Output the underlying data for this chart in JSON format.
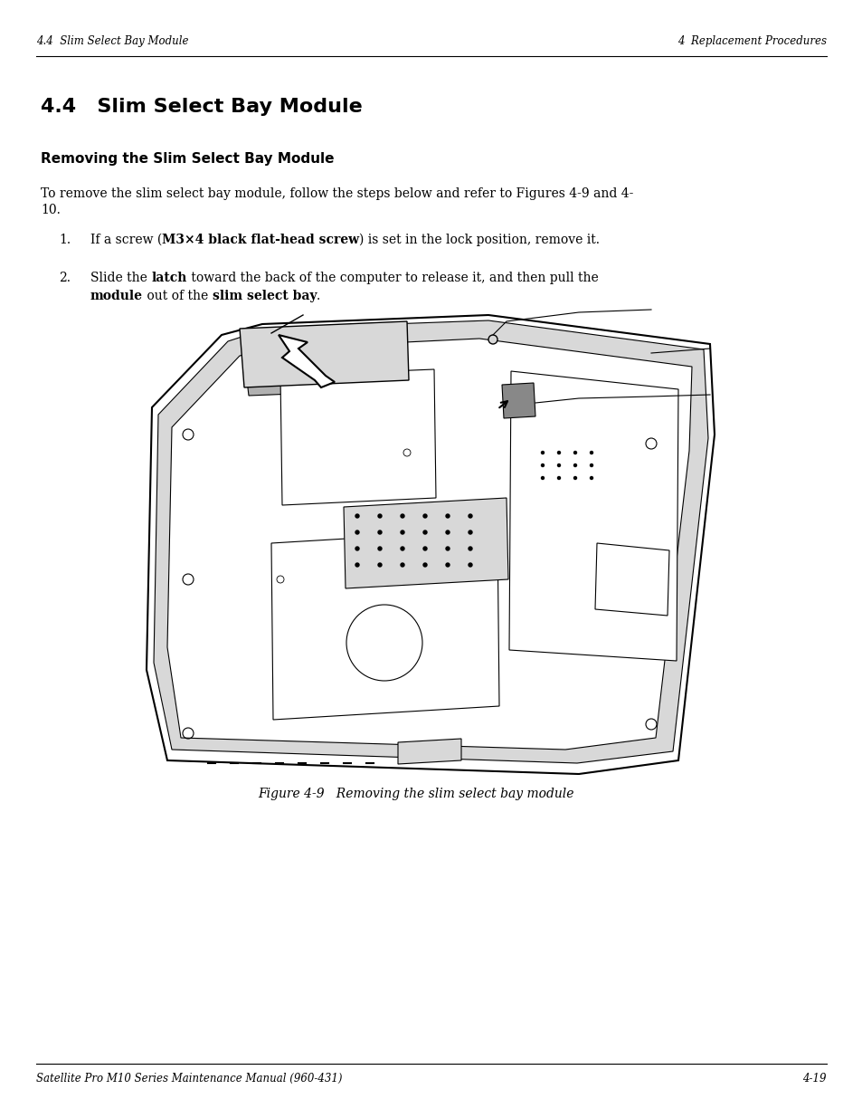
{
  "header_left": "4.4  Slim Select Bay Module",
  "header_right": "4  Replacement Procedures",
  "footer_left": "Satellite Pro M10 Series Maintenance Manual (960-431)",
  "footer_right": "4-19",
  "section_title": "4.4   Slim Select Bay Module",
  "subsection_title": "Removing the Slim Select Bay Module",
  "body_line1": "To remove the slim select bay module, follow the steps below and refer to Figures 4-9 and 4-",
  "body_line2": "10.",
  "step1_pre": "If a screw (",
  "step1_bold": "M3×4 black flat-head screw",
  "step1_post": ") is set in the lock position, remove it.",
  "step2_pre": "Slide the ",
  "step2_bold1": "latch",
  "step2_mid": " toward the back of the computer to release it, and then pull the",
  "step2_bold2": "module",
  "step2_mid2": " out of the ",
  "step2_bold3": "slim select bay",
  "step2_end": ".",
  "figure_caption": "Figure 4-9   Removing the slim select bay module",
  "bg_color": "#ffffff",
  "text_color": "#000000"
}
